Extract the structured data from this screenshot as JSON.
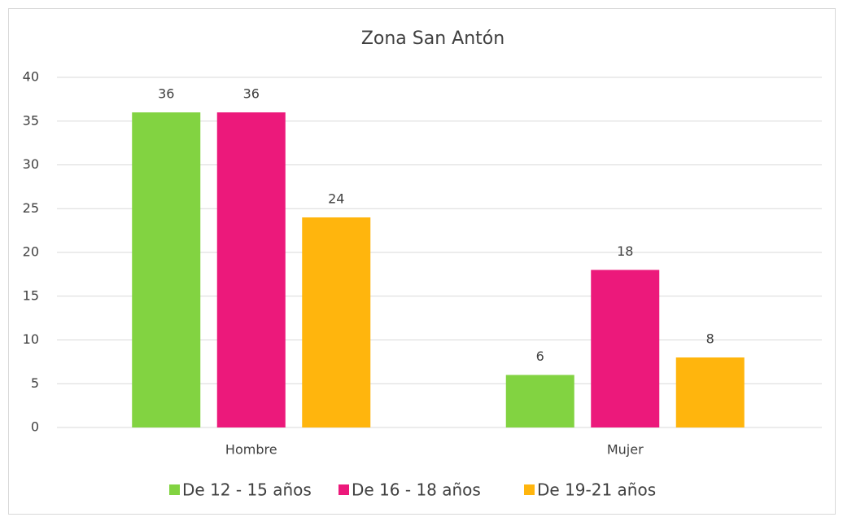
{
  "chart_data": {
    "type": "bar",
    "title": "Zona San Antón",
    "categories": [
      "Hombre",
      "Mujer"
    ],
    "series": [
      {
        "name": "De 12 - 15 años",
        "color": "#82d341",
        "values": [
          36,
          6
        ]
      },
      {
        "name": "De 16 - 18 años",
        "color": "#ec197b",
        "values": [
          36,
          18
        ]
      },
      {
        "name": "De 19-21 años",
        "color": "#ffb50d",
        "values": [
          24,
          8
        ]
      }
    ],
    "ylim": [
      0,
      40
    ],
    "yticks": [
      0,
      5,
      10,
      15,
      20,
      25,
      30,
      35,
      40
    ],
    "grid": true,
    "legend": "bottom",
    "data_labels": true
  }
}
